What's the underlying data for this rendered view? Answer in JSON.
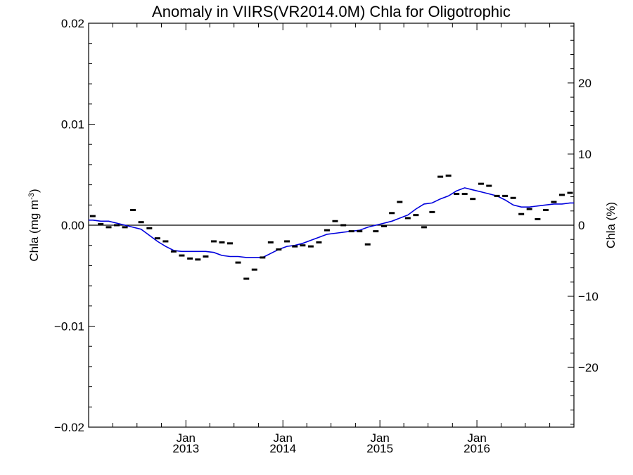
{
  "chart_data": {
    "type": "scatter",
    "title": "Anomaly in VIIRS(VR2014.0M) Chla for Oligotrophic",
    "ylabel_left": {
      "main": "Chla (mg m",
      "sup": "-3",
      "close": ")"
    },
    "ylabel_right": "Chla (%)",
    "x_range": [
      "2012-01-01",
      "2016-12-31"
    ],
    "ylim_left": [
      -0.02,
      0.02
    ],
    "ylim_right": [
      -28.4,
      28.4
    ],
    "y_ticks_left": [
      {
        "value": -0.02,
        "label": "−0.02"
      },
      {
        "value": -0.01,
        "label": "−0.01"
      },
      {
        "value": 0.0,
        "label": "0.00"
      },
      {
        "value": 0.01,
        "label": "0.01"
      },
      {
        "value": 0.02,
        "label": "0.02"
      }
    ],
    "y_ticks_right": [
      {
        "value": -20,
        "label": "−20"
      },
      {
        "value": -10,
        "label": "−10"
      },
      {
        "value": 0,
        "label": "0"
      },
      {
        "value": 10,
        "label": "10"
      },
      {
        "value": 20,
        "label": "20"
      }
    ],
    "x_ticks": [
      {
        "date": "2013-01-01",
        "month": "Jan",
        "year": "2013"
      },
      {
        "date": "2014-01-01",
        "month": "Jan",
        "year": "2014"
      },
      {
        "date": "2015-01-01",
        "month": "Jan",
        "year": "2015"
      },
      {
        "date": "2016-01-01",
        "month": "Jan",
        "year": "2016"
      }
    ],
    "zero_line": 0,
    "series": [
      {
        "kind": "monthly-anomaly",
        "color": "#000000",
        "points": [
          {
            "date": "2012-01",
            "y": 0.0009
          },
          {
            "date": "2012-02",
            "y": 0.0001
          },
          {
            "date": "2012-03",
            "y": -0.0002
          },
          {
            "date": "2012-04",
            "y": 0.0
          },
          {
            "date": "2012-05",
            "y": -0.0002
          },
          {
            "date": "2012-06",
            "y": 0.0015
          },
          {
            "date": "2012-07",
            "y": 0.0003
          },
          {
            "date": "2012-08",
            "y": -0.0003
          },
          {
            "date": "2012-09",
            "y": -0.0013
          },
          {
            "date": "2012-10",
            "y": -0.0016
          },
          {
            "date": "2012-11",
            "y": -0.0026
          },
          {
            "date": "2012-12",
            "y": -0.003
          },
          {
            "date": "2013-01",
            "y": -0.0033
          },
          {
            "date": "2013-02",
            "y": -0.0034
          },
          {
            "date": "2013-03",
            "y": -0.0031
          },
          {
            "date": "2013-04",
            "y": -0.0016
          },
          {
            "date": "2013-05",
            "y": -0.0017
          },
          {
            "date": "2013-06",
            "y": -0.0018
          },
          {
            "date": "2013-07",
            "y": -0.0037
          },
          {
            "date": "2013-08",
            "y": -0.0053
          },
          {
            "date": "2013-09",
            "y": -0.0044
          },
          {
            "date": "2013-10",
            "y": -0.0032
          },
          {
            "date": "2013-11",
            "y": -0.0017
          },
          {
            "date": "2013-12",
            "y": -0.0024
          },
          {
            "date": "2014-01",
            "y": -0.0016
          },
          {
            "date": "2014-02",
            "y": -0.0021
          },
          {
            "date": "2014-03",
            "y": -0.002
          },
          {
            "date": "2014-04",
            "y": -0.0021
          },
          {
            "date": "2014-05",
            "y": -0.0017
          },
          {
            "date": "2014-06",
            "y": -0.0005
          },
          {
            "date": "2014-07",
            "y": 0.0004
          },
          {
            "date": "2014-08",
            "y": 0.0
          },
          {
            "date": "2014-09",
            "y": -0.0006
          },
          {
            "date": "2014-10",
            "y": -0.0006
          },
          {
            "date": "2014-11",
            "y": -0.0019
          },
          {
            "date": "2014-12",
            "y": -0.0006
          },
          {
            "date": "2015-01",
            "y": -0.0001
          },
          {
            "date": "2015-02",
            "y": 0.0012
          },
          {
            "date": "2015-03",
            "y": 0.0023
          },
          {
            "date": "2015-04",
            "y": 0.0007
          },
          {
            "date": "2015-05",
            "y": 0.001
          },
          {
            "date": "2015-06",
            "y": -0.0002
          },
          {
            "date": "2015-07",
            "y": 0.0013
          },
          {
            "date": "2015-08",
            "y": 0.0048
          },
          {
            "date": "2015-09",
            "y": 0.0049
          },
          {
            "date": "2015-10",
            "y": 0.0031
          },
          {
            "date": "2015-11",
            "y": 0.0031
          },
          {
            "date": "2015-12",
            "y": 0.0026
          },
          {
            "date": "2016-01",
            "y": 0.0041
          },
          {
            "date": "2016-02",
            "y": 0.0039
          },
          {
            "date": "2016-03",
            "y": 0.0029
          },
          {
            "date": "2016-04",
            "y": 0.0029
          },
          {
            "date": "2016-05",
            "y": 0.0027
          },
          {
            "date": "2016-06",
            "y": 0.0011
          },
          {
            "date": "2016-07",
            "y": 0.0016
          },
          {
            "date": "2016-08",
            "y": 0.0006
          },
          {
            "date": "2016-09",
            "y": 0.0015
          },
          {
            "date": "2016-10",
            "y": 0.0023
          },
          {
            "date": "2016-11",
            "y": 0.003
          },
          {
            "date": "2016-12",
            "y": 0.0032
          }
        ]
      },
      {
        "kind": "running-mean",
        "color": "#0000dd",
        "points": [
          {
            "date": "2012-01",
            "y": 0.0005
          },
          {
            "date": "2012-02",
            "y": 0.0004
          },
          {
            "date": "2012-03",
            "y": 0.0004
          },
          {
            "date": "2012-04",
            "y": 0.0002
          },
          {
            "date": "2012-05",
            "y": 0.0
          },
          {
            "date": "2012-06",
            "y": -0.0002
          },
          {
            "date": "2012-07",
            "y": -0.0004
          },
          {
            "date": "2012-08",
            "y": -0.001
          },
          {
            "date": "2012-09",
            "y": -0.0016
          },
          {
            "date": "2012-10",
            "y": -0.0021
          },
          {
            "date": "2012-11",
            "y": -0.0025
          },
          {
            "date": "2012-12",
            "y": -0.0026
          },
          {
            "date": "2013-01",
            "y": -0.0026
          },
          {
            "date": "2013-02",
            "y": -0.0026
          },
          {
            "date": "2013-03",
            "y": -0.0026
          },
          {
            "date": "2013-04",
            "y": -0.0027
          },
          {
            "date": "2013-05",
            "y": -0.003
          },
          {
            "date": "2013-06",
            "y": -0.0031
          },
          {
            "date": "2013-07",
            "y": -0.0031
          },
          {
            "date": "2013-08",
            "y": -0.0032
          },
          {
            "date": "2013-09",
            "y": -0.0032
          },
          {
            "date": "2013-10",
            "y": -0.0032
          },
          {
            "date": "2013-11",
            "y": -0.0028
          },
          {
            "date": "2013-12",
            "y": -0.0024
          },
          {
            "date": "2014-01",
            "y": -0.0021
          },
          {
            "date": "2014-02",
            "y": -0.002
          },
          {
            "date": "2014-03",
            "y": -0.0018
          },
          {
            "date": "2014-04",
            "y": -0.0015
          },
          {
            "date": "2014-05",
            "y": -0.0012
          },
          {
            "date": "2014-06",
            "y": -0.0009
          },
          {
            "date": "2014-07",
            "y": -0.0008
          },
          {
            "date": "2014-08",
            "y": -0.0007
          },
          {
            "date": "2014-09",
            "y": -0.0006
          },
          {
            "date": "2014-10",
            "y": -0.0005
          },
          {
            "date": "2014-11",
            "y": -0.0002
          },
          {
            "date": "2014-12",
            "y": 0.0
          },
          {
            "date": "2015-01",
            "y": 0.0002
          },
          {
            "date": "2015-02",
            "y": 0.0004
          },
          {
            "date": "2015-03",
            "y": 0.0007
          },
          {
            "date": "2015-04",
            "y": 0.001
          },
          {
            "date": "2015-05",
            "y": 0.0016
          },
          {
            "date": "2015-06",
            "y": 0.0021
          },
          {
            "date": "2015-07",
            "y": 0.0022
          },
          {
            "date": "2015-08",
            "y": 0.0026
          },
          {
            "date": "2015-09",
            "y": 0.0029
          },
          {
            "date": "2015-10",
            "y": 0.0034
          },
          {
            "date": "2015-11",
            "y": 0.0037
          },
          {
            "date": "2015-12",
            "y": 0.0035
          },
          {
            "date": "2016-01",
            "y": 0.0033
          },
          {
            "date": "2016-02",
            "y": 0.0031
          },
          {
            "date": "2016-03",
            "y": 0.0029
          },
          {
            "date": "2016-04",
            "y": 0.0025
          },
          {
            "date": "2016-05",
            "y": 0.002
          },
          {
            "date": "2016-06",
            "y": 0.0018
          },
          {
            "date": "2016-07",
            "y": 0.0018
          },
          {
            "date": "2016-08",
            "y": 0.0019
          },
          {
            "date": "2016-09",
            "y": 0.002
          },
          {
            "date": "2016-10",
            "y": 0.0021
          },
          {
            "date": "2016-11",
            "y": 0.0021
          },
          {
            "date": "2016-12",
            "y": 0.0022
          }
        ]
      }
    ]
  }
}
